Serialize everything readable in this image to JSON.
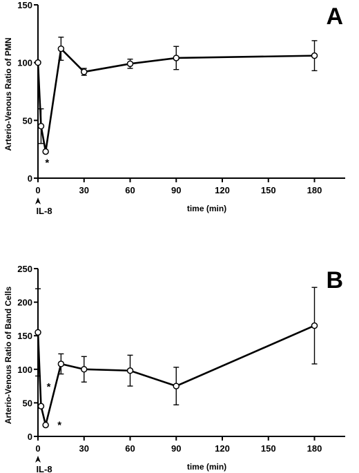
{
  "chart_data": [
    {
      "type": "line",
      "panel_label": "A",
      "ylabel": "Arterio-Venous  Ratio of PMN",
      "xlabel": "time  (min)",
      "stimulus_label": "IL-8",
      "xlim": [
        0,
        200
      ],
      "ylim": [
        0,
        150
      ],
      "x_ticks": [
        0,
        30,
        60,
        90,
        120,
        150,
        180
      ],
      "y_ticks": [
        0,
        50,
        100,
        150
      ],
      "series": [
        {
          "x": [
            0,
            2,
            5,
            15,
            30,
            60,
            90,
            180
          ],
          "y": [
            100,
            45,
            23,
            112,
            92,
            99,
            104,
            106
          ],
          "error": [
            null,
            15,
            null,
            10,
            3,
            4,
            10,
            13
          ]
        }
      ],
      "annotations": [
        {
          "text": "*",
          "x": 6,
          "y": 14
        }
      ]
    },
    {
      "type": "line",
      "panel_label": "B",
      "ylabel": "Arterio-Venous Ratio of Band Cells",
      "xlabel": "time  (min)",
      "stimulus_label": "IL-8",
      "xlim": [
        0,
        200
      ],
      "ylim": [
        0,
        250
      ],
      "x_ticks": [
        0,
        30,
        60,
        90,
        120,
        150,
        180
      ],
      "y_ticks": [
        0,
        50,
        100,
        150,
        200,
        250
      ],
      "series": [
        {
          "x": [
            0,
            2,
            5,
            15,
            30,
            60,
            90,
            180
          ],
          "y": [
            155,
            45,
            17,
            108,
            100,
            98,
            75,
            165
          ],
          "error": [
            65,
            null,
            null,
            15,
            19,
            23,
            28,
            57
          ]
        }
      ],
      "annotations": [
        {
          "text": "*",
          "x": 7,
          "y": 75
        },
        {
          "text": "*",
          "x": 14,
          "y": 18
        }
      ]
    }
  ]
}
